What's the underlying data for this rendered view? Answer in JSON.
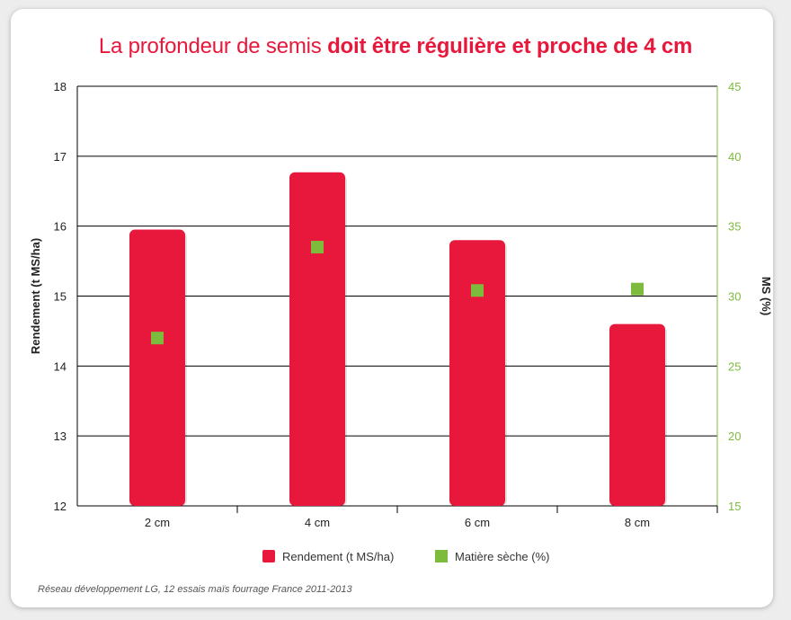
{
  "title": {
    "regular": "La profondeur de semis ",
    "bold": "doit être régulière et proche de 4 cm"
  },
  "footnote": "Réseau développement LG, 12 essais maïs fourrage France 2011-2013",
  "colors": {
    "title": "#e8183c",
    "bar": "#e8183c",
    "marker": "#7dbb3c",
    "right_axis": "#7dbb3c",
    "grid": "#000000"
  },
  "chart_data": {
    "type": "bar",
    "categories": [
      "2 cm",
      "4 cm",
      "6 cm",
      "8 cm"
    ],
    "series": [
      {
        "name": "Rendement (t MS/ha)",
        "kind": "bar",
        "axis": "left",
        "values": [
          15.95,
          16.77,
          15.8,
          14.6
        ]
      },
      {
        "name": "Matière sèche (%)",
        "kind": "marker",
        "axis": "right",
        "values": [
          27.0,
          33.5,
          30.4,
          30.5
        ]
      }
    ],
    "ylabel": "Rendement (t MS/ha)",
    "ylim": [
      12,
      18
    ],
    "yticks": [
      "12",
      "13",
      "14",
      "15",
      "16",
      "17",
      "18"
    ],
    "y2label": "MS (%)",
    "y2lim": [
      15,
      45
    ],
    "y2ticks": [
      "15",
      "20",
      "25",
      "30",
      "35",
      "40",
      "45"
    ],
    "grid": true,
    "legend_position": "bottom"
  }
}
